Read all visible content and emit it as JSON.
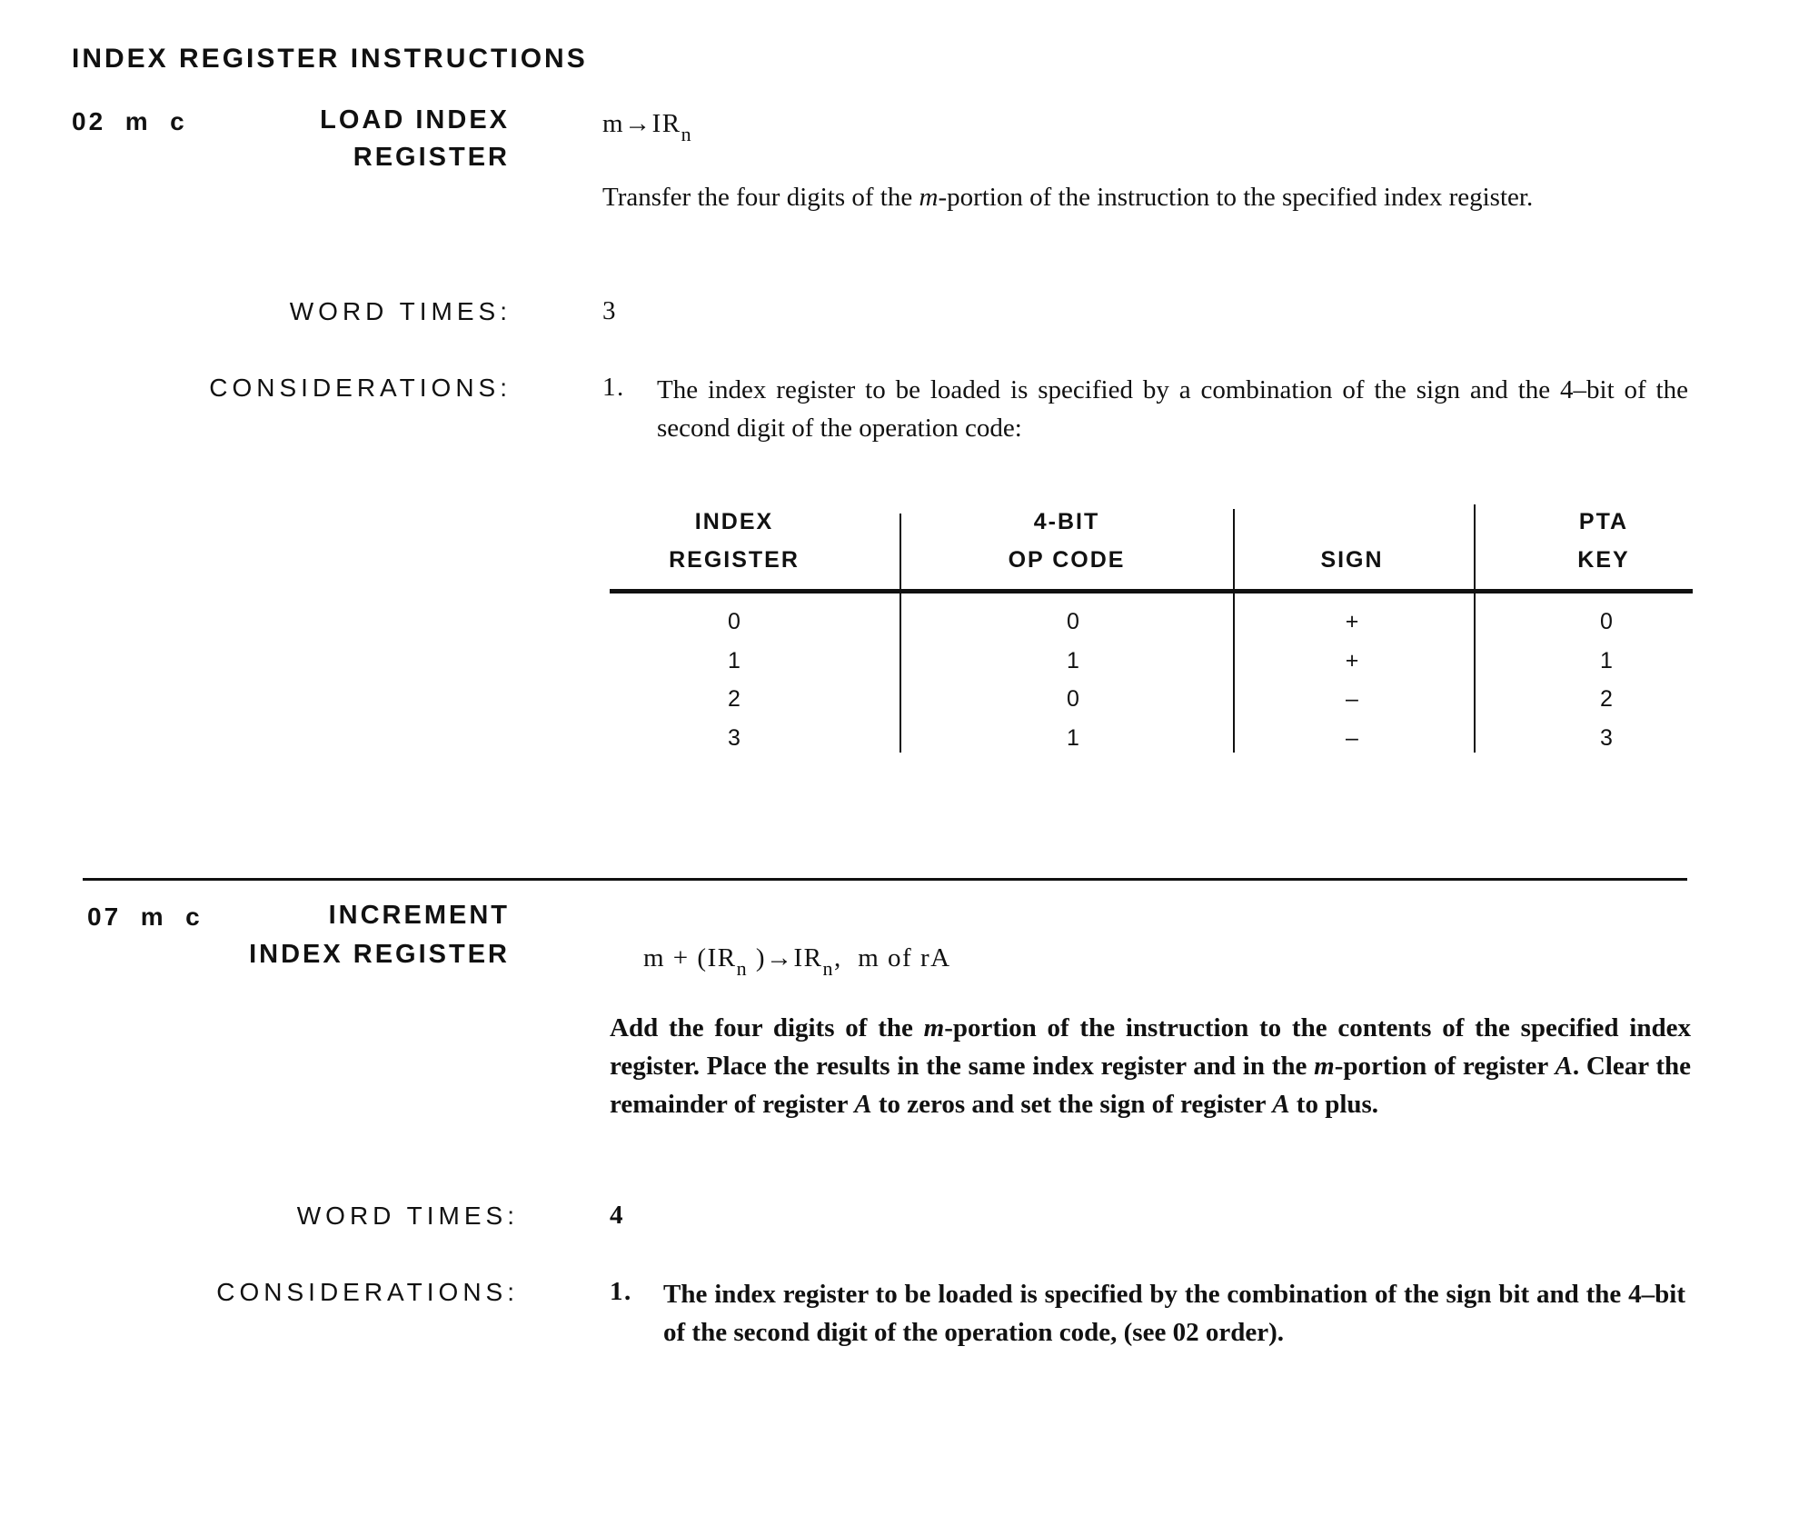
{
  "title": "INDEX REGISTER INSTRUCTIONS",
  "instructions": [
    {
      "code": "02  m  c",
      "name_line1": "LOAD INDEX",
      "name_line2": "REGISTER",
      "formula": {
        "m": "m",
        "arrow": "→",
        "ir": "IR",
        "sub": "n"
      },
      "description": "Transfer the four digits of the m-portion of the instruction to the specified index register.",
      "desc_parts": [
        "Transfer the four digits of the ",
        "m",
        "-portion of the instruction to the specified index register."
      ],
      "word_times_label": "WORD TIMES:",
      "word_times": "3",
      "considerations_label": "CONSIDERATIONS:",
      "consideration_number": "1.",
      "consideration": "The index register to be loaded is specified by a combination of the sign and the 4–bit of the second digit of the operation code:"
    },
    {
      "code": "07  m  c",
      "name_line1": "INCREMENT",
      "name_line2": "INDEX REGISTER",
      "formula": {
        "m": "m + (IR",
        "sub1": "n",
        "mid": " )",
        "arrow": "→",
        "ir": "IR",
        "sub2": "n",
        "tail": ",  m of rA"
      },
      "desc_parts": [
        "Add the four digits of the ",
        "m",
        "-portion of the instruction to the contents of the specified index register. Place the results in the same index register and in the ",
        "m",
        "-portion of register ",
        "A",
        ". Clear the remainder of register ",
        "A",
        " to zeros and set the sign of register ",
        "A",
        " to plus."
      ],
      "word_times_label": "WORD TIMES:",
      "word_times": "4",
      "considerations_label": "CONSIDERATIONS:",
      "consideration_number": "1.",
      "consideration": "The index register to be loaded is specified by the combination of the sign bit and the 4–bit of the second digit of the operation code, (see 02 order)."
    }
  ],
  "table": {
    "headers": [
      [
        "INDEX",
        "REGISTER"
      ],
      [
        "4-BIT",
        "OP CODE"
      ],
      [
        "",
        "SIGN"
      ],
      [
        "PTA",
        "KEY"
      ]
    ],
    "rows": [
      [
        "0",
        "0",
        "+",
        "0"
      ],
      [
        "1",
        "1",
        "+",
        "1"
      ],
      [
        "2",
        "0",
        "–",
        "2"
      ],
      [
        "3",
        "1",
        "–",
        "3"
      ]
    ]
  }
}
